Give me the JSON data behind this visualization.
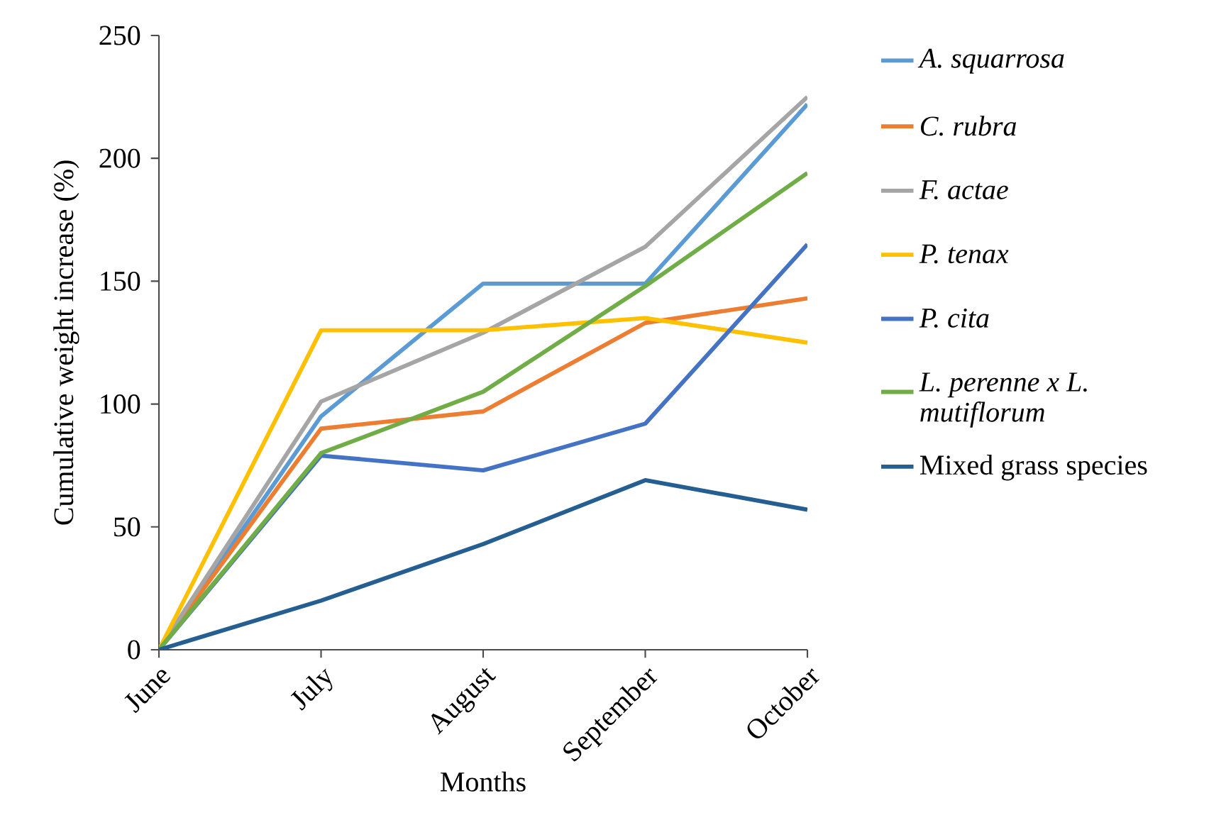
{
  "chart_data": {
    "type": "line",
    "xlabel": "Months",
    "ylabel": "Cumulative weight increase (%)",
    "categories": [
      "June",
      "July",
      "August",
      "September",
      "October"
    ],
    "ylim": [
      0,
      250
    ],
    "yticks": [
      0,
      50,
      100,
      150,
      200,
      250
    ],
    "grid": false,
    "legend": "right",
    "marker": "none",
    "line_style": "solid",
    "series": [
      {
        "name": "*A. squarrosa*",
        "color": "#5b9bd5",
        "values": [
          0,
          95,
          149,
          149,
          222
        ]
      },
      {
        "name": "*C. rubra*",
        "color": "#ed7d31",
        "values": [
          0,
          90,
          97,
          133,
          143
        ]
      },
      {
        "name": "*F. actae*",
        "color": "#a5a5a5",
        "values": [
          0,
          101,
          129,
          164,
          225
        ]
      },
      {
        "name": "*P. tenax*",
        "color": "#ffc000",
        "values": [
          0,
          130,
          130,
          135,
          125
        ]
      },
      {
        "name": "*P. cita*",
        "color": "#4472c4",
        "values": [
          0,
          79,
          73,
          92,
          165
        ]
      },
      {
        "name": "*L. perenne x L. mutiflorum*",
        "color": "#70ad47",
        "values": [
          0,
          80,
          105,
          148,
          194
        ]
      },
      {
        "name": "Mixed grass species",
        "color": "#255e91",
        "values": [
          0,
          20,
          43,
          69,
          57
        ]
      }
    ]
  }
}
